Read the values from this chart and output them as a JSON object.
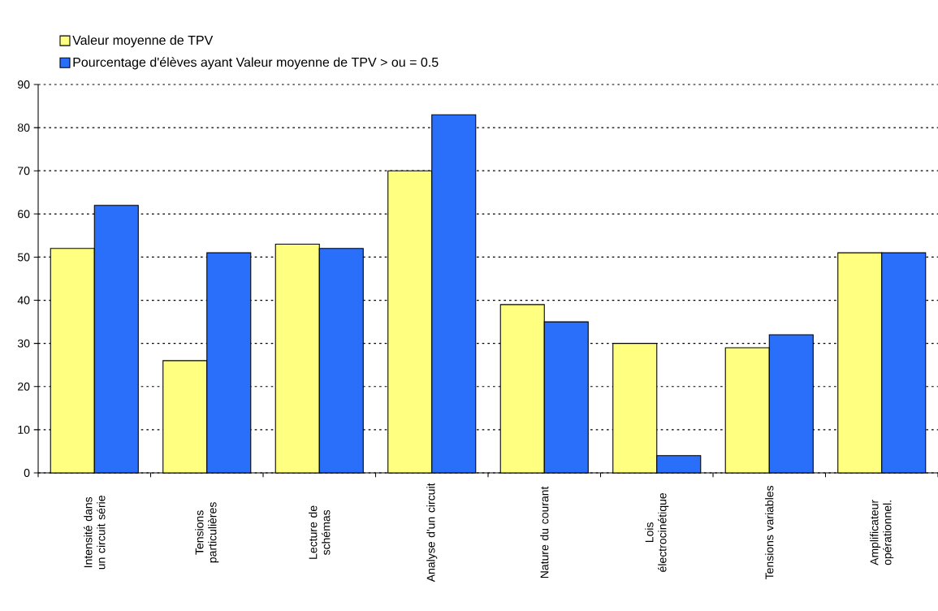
{
  "chart_data": {
    "type": "bar",
    "categories": [
      "Intensité dans un circuit série",
      "Tensions particulières",
      "Lecture de schémas",
      "Analyse d'un circuit",
      "Nature du courant",
      "Lois électrocinétique",
      "Tensions variables",
      "Amplificateur opérationnel."
    ],
    "series": [
      {
        "name": "Valeur moyenne de TPV",
        "color": "#ffff80",
        "values": [
          52,
          26,
          53,
          70,
          39,
          30,
          29,
          51
        ]
      },
      {
        "name": "Pourcentage d'élèves ayant Valeur moyenne de TPV > ou = 0.5",
        "color": "#2a6ff9",
        "values": [
          62,
          51,
          52,
          83,
          35,
          4,
          32,
          51
        ]
      }
    ],
    "ylim": [
      0,
      90
    ],
    "yticks": [
      0,
      10,
      20,
      30,
      40,
      50,
      60,
      70,
      80,
      90
    ],
    "grid": "y",
    "legend": "top"
  }
}
